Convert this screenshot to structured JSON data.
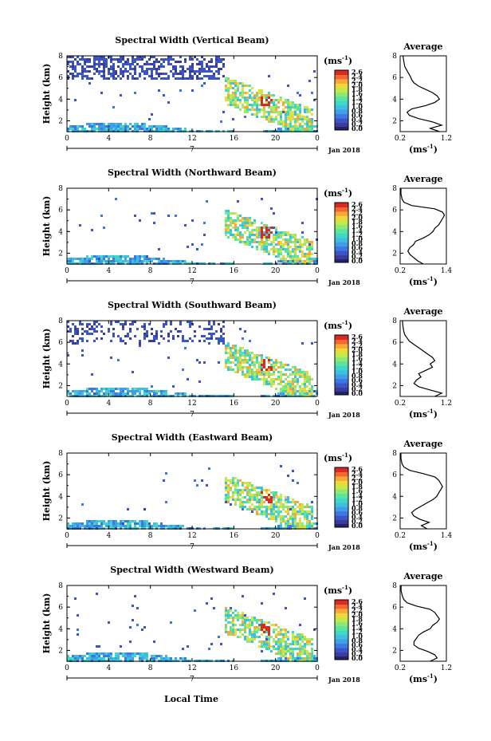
{
  "figure": {
    "xlabel": "Local Time",
    "date_label": "Jan 2018",
    "day_label": "7",
    "avg_title": "Average",
    "unit_label": "(ms",
    "unit_sup": "-1",
    "unit_close": ")"
  },
  "colors": {
    "colormap": [
      "#3b3b9c",
      "#3b55c8",
      "#3d79e0",
      "#3f9ee8",
      "#3fbfe0",
      "#41d7c6",
      "#5be3a0",
      "#8fe872",
      "#c5e84a",
      "#efd83c",
      "#f8a838",
      "#f26830",
      "#d82a22"
    ],
    "low_color": "#23236b",
    "line": "#000000"
  },
  "chart_data": [
    {
      "type": "heatmap",
      "title": "Spectral Width (Vertical Beam)",
      "ylabel": "Height (km)",
      "xlim": [
        0,
        24
      ],
      "ylim": [
        1,
        8
      ],
      "xticks": [
        "0",
        "4",
        "8",
        "12",
        "16",
        "20",
        "0"
      ],
      "yticks": [
        "2",
        "4",
        "6",
        "8"
      ],
      "colorbar": {
        "min": 0.0,
        "max": 2.6,
        "ticks": [
          "2.6",
          "2.4",
          "2.2",
          "2.0",
          "1.8",
          "1.6",
          "1.4",
          "1.2",
          "1.0",
          "0.8",
          "0.6",
          "0.4",
          "0.2",
          "0.0"
        ]
      },
      "average": {
        "xticks": [
          "0.2",
          "1.2"
        ],
        "xlim": [
          0.2,
          1.2
        ],
        "yticks": [
          "2",
          "4",
          "6",
          "8"
        ],
        "profile": [
          [
            1.0,
            1.05
          ],
          [
            1.3,
            0.85
          ],
          [
            1.6,
            1.1
          ],
          [
            1.9,
            0.9
          ],
          [
            2.2,
            0.6
          ],
          [
            2.5,
            0.4
          ],
          [
            2.8,
            0.35
          ],
          [
            3.1,
            0.45
          ],
          [
            3.4,
            0.75
          ],
          [
            3.7,
            0.95
          ],
          [
            4.0,
            1.05
          ],
          [
            4.3,
            1.0
          ],
          [
            4.6,
            0.9
          ],
          [
            4.9,
            0.75
          ],
          [
            5.2,
            0.6
          ],
          [
            5.5,
            0.5
          ],
          [
            5.8,
            0.45
          ],
          [
            6.1,
            0.42
          ],
          [
            6.4,
            0.38
          ],
          [
            6.7,
            0.34
          ],
          [
            7.0,
            0.3
          ],
          [
            7.5,
            0.28
          ],
          [
            8.0,
            0.26
          ]
        ]
      }
    },
    {
      "type": "heatmap",
      "title": "Spectral Width (Northward Beam)",
      "ylabel": "Height (km)",
      "xlim": [
        0,
        24
      ],
      "ylim": [
        1,
        8
      ],
      "xticks": [
        "0",
        "4",
        "8",
        "12",
        "16",
        "20",
        "0"
      ],
      "yticks": [
        "2",
        "4",
        "6",
        "8"
      ],
      "colorbar": {
        "min": 0.0,
        "max": 2.6,
        "ticks": [
          "2.6",
          "2.4",
          "2.2",
          "2.0",
          "1.8",
          "1.6",
          "1.4",
          "1.2",
          "1.0",
          "0.8",
          "0.6",
          "0.4",
          "0.2",
          "0.0"
        ]
      },
      "average": {
        "xticks": [
          "0.2",
          "1.4"
        ],
        "xlim": [
          0.2,
          1.4
        ],
        "yticks": [
          "2",
          "4",
          "6",
          "8"
        ],
        "profile": [
          [
            1.0,
            0.8
          ],
          [
            1.3,
            0.65
          ],
          [
            1.6,
            0.55
          ],
          [
            1.9,
            0.45
          ],
          [
            2.2,
            0.4
          ],
          [
            2.5,
            0.45
          ],
          [
            2.8,
            0.55
          ],
          [
            3.1,
            0.6
          ],
          [
            3.4,
            0.8
          ],
          [
            3.7,
            0.95
          ],
          [
            4.0,
            1.05
          ],
          [
            4.3,
            1.1
          ],
          [
            4.6,
            1.2
          ],
          [
            4.9,
            1.25
          ],
          [
            5.2,
            1.3
          ],
          [
            5.5,
            1.35
          ],
          [
            5.8,
            1.3
          ],
          [
            6.1,
            1.1
          ],
          [
            6.4,
            0.5
          ],
          [
            6.7,
            0.3
          ],
          [
            7.0,
            0.25
          ],
          [
            7.5,
            0.22
          ],
          [
            8.0,
            0.22
          ]
        ]
      }
    },
    {
      "type": "heatmap",
      "title": "Spectral Width (Southward Beam)",
      "ylabel": "Height (km)",
      "xlim": [
        0,
        24
      ],
      "ylim": [
        1,
        8
      ],
      "xticks": [
        "0",
        "4",
        "8",
        "12",
        "16",
        "20",
        "0"
      ],
      "yticks": [
        "2",
        "4",
        "6",
        "8"
      ],
      "colorbar": {
        "min": 0.0,
        "max": 2.6,
        "ticks": [
          "2.6",
          "2.4",
          "2.2",
          "2.0",
          "1.8",
          "1.6",
          "1.4",
          "1.2",
          "1.0",
          "0.8",
          "0.6",
          "0.4",
          "0.2",
          "0.0"
        ]
      },
      "average": {
        "xticks": [
          "0.2",
          "1.2"
        ],
        "xlim": [
          0.2,
          1.2
        ],
        "yticks": [
          "2",
          "4",
          "6",
          "8"
        ],
        "profile": [
          [
            1.0,
            0.95
          ],
          [
            1.3,
            1.1
          ],
          [
            1.6,
            0.85
          ],
          [
            1.9,
            0.6
          ],
          [
            2.2,
            0.5
          ],
          [
            2.5,
            0.55
          ],
          [
            2.8,
            0.65
          ],
          [
            3.1,
            0.6
          ],
          [
            3.4,
            0.75
          ],
          [
            3.7,
            0.9
          ],
          [
            4.0,
            0.85
          ],
          [
            4.3,
            0.95
          ],
          [
            4.6,
            0.9
          ],
          [
            4.9,
            0.8
          ],
          [
            5.2,
            0.7
          ],
          [
            5.5,
            0.6
          ],
          [
            5.8,
            0.5
          ],
          [
            6.1,
            0.4
          ],
          [
            6.4,
            0.35
          ],
          [
            6.7,
            0.3
          ],
          [
            7.0,
            0.28
          ],
          [
            7.5,
            0.26
          ],
          [
            8.0,
            0.25
          ]
        ]
      }
    },
    {
      "type": "heatmap",
      "title": "Spectral Width (Eastward Beam)",
      "ylabel": "Height (km)",
      "xlim": [
        0,
        24
      ],
      "ylim": [
        1,
        8
      ],
      "xticks": [
        "0",
        "4",
        "8",
        "12",
        "16",
        "20",
        "0"
      ],
      "yticks": [
        "2",
        "4",
        "6",
        "8"
      ],
      "colorbar": {
        "min": 0.0,
        "max": 2.6,
        "ticks": [
          "2.6",
          "2.4",
          "2.2",
          "2.0",
          "1.8",
          "1.6",
          "1.4",
          "1.2",
          "1.0",
          "0.8",
          "0.6",
          "0.4",
          "0.2",
          "0.0"
        ]
      },
      "average": {
        "xticks": [
          "0.2",
          "1.4"
        ],
        "xlim": [
          0.2,
          1.4
        ],
        "yticks": [
          "2",
          "4",
          "6",
          "8"
        ],
        "profile": [
          [
            1.0,
            0.9
          ],
          [
            1.3,
            0.75
          ],
          [
            1.6,
            0.95
          ],
          [
            1.9,
            0.7
          ],
          [
            2.2,
            0.55
          ],
          [
            2.5,
            0.5
          ],
          [
            2.8,
            0.6
          ],
          [
            3.1,
            0.75
          ],
          [
            3.4,
            0.9
          ],
          [
            3.7,
            1.05
          ],
          [
            4.0,
            1.15
          ],
          [
            4.3,
            1.2
          ],
          [
            4.6,
            1.25
          ],
          [
            4.9,
            1.3
          ],
          [
            5.2,
            1.25
          ],
          [
            5.5,
            1.2
          ],
          [
            5.8,
            1.1
          ],
          [
            6.1,
            0.8
          ],
          [
            6.4,
            0.45
          ],
          [
            6.7,
            0.3
          ],
          [
            7.0,
            0.25
          ],
          [
            7.5,
            0.22
          ],
          [
            8.0,
            0.22
          ]
        ]
      }
    },
    {
      "type": "heatmap",
      "title": "Spectral Width (Westward Beam)",
      "ylabel": "Height (km)",
      "xlim": [
        0,
        24
      ],
      "ylim": [
        1,
        8
      ],
      "xticks": [
        "0",
        "4",
        "8",
        "12",
        "16",
        "20",
        "0"
      ],
      "yticks": [
        "2",
        "4",
        "6",
        "8"
      ],
      "colorbar": {
        "min": 0.0,
        "max": 2.6,
        "ticks": [
          "2.6",
          "2.4",
          "2.2",
          "2.0",
          "1.8",
          "1.6",
          "1.4",
          "1.2",
          "1.0",
          "0.8",
          "0.6",
          "0.4",
          "0.2",
          "0.0"
        ]
      },
      "average": {
        "xticks": [
          "0.2",
          "1.2"
        ],
        "xlim": [
          0.2,
          1.2
        ],
        "yticks": [
          "2",
          "4",
          "6",
          "8"
        ],
        "profile": [
          [
            1.0,
            0.85
          ],
          [
            1.3,
            1.0
          ],
          [
            1.6,
            0.95
          ],
          [
            1.9,
            0.8
          ],
          [
            2.2,
            0.6
          ],
          [
            2.5,
            0.5
          ],
          [
            2.8,
            0.5
          ],
          [
            3.1,
            0.55
          ],
          [
            3.4,
            0.6
          ],
          [
            3.7,
            0.7
          ],
          [
            4.0,
            0.85
          ],
          [
            4.3,
            0.9
          ],
          [
            4.6,
            1.0
          ],
          [
            4.9,
            1.05
          ],
          [
            5.2,
            1.0
          ],
          [
            5.5,
            0.95
          ],
          [
            5.8,
            0.85
          ],
          [
            6.1,
            0.55
          ],
          [
            6.4,
            0.35
          ],
          [
            6.7,
            0.28
          ],
          [
            7.0,
            0.25
          ],
          [
            7.5,
            0.22
          ],
          [
            8.0,
            0.22
          ]
        ]
      }
    }
  ]
}
